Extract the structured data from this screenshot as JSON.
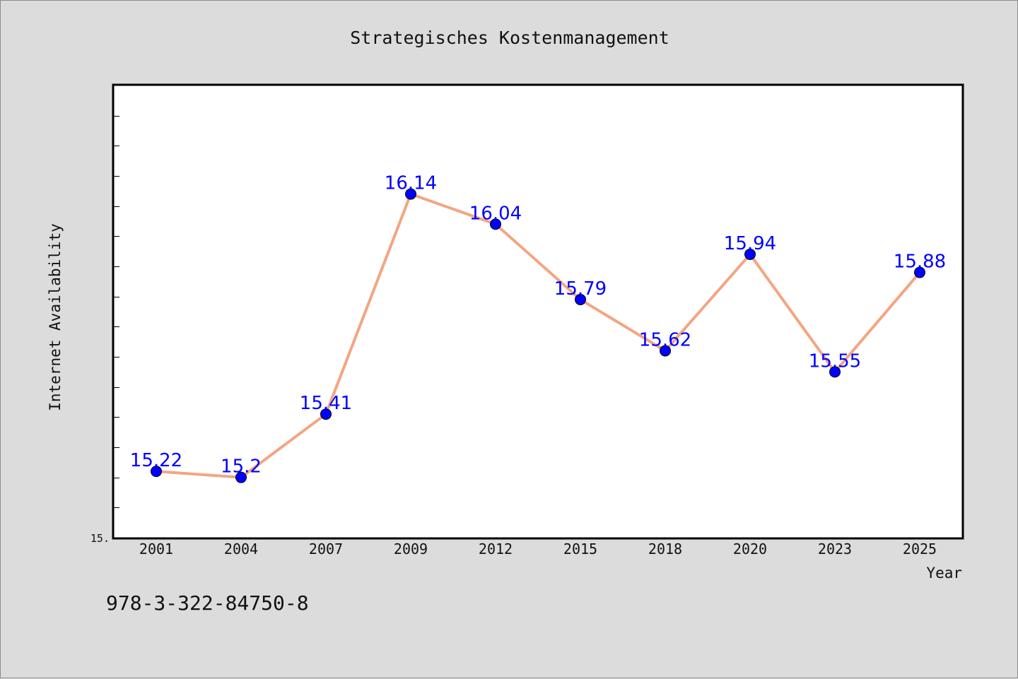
{
  "chart_data": {
    "type": "line",
    "title": "Strategisches Kostenmanagement",
    "xlabel": "Year",
    "ylabel": "Internet Availability",
    "categories": [
      "2001",
      "2004",
      "2007",
      "2009",
      "2012",
      "2015",
      "2018",
      "2020",
      "2023",
      "2025"
    ],
    "series": [
      {
        "values": [
          15.22,
          15.2,
          15.41,
          16.14,
          16.04,
          15.79,
          15.62,
          15.94,
          15.55,
          15.88
        ],
        "labels": [
          "15.22",
          "15.2",
          "15.41",
          "16.14",
          "16.04",
          "15.79",
          "15.62",
          "15.94",
          "15.55",
          "15.88"
        ]
      }
    ],
    "ylim": [
      15.0,
      16.5
    ],
    "y_tick_label": "15.",
    "grid": false,
    "legend": false
  },
  "footer": {
    "text": "978-3-322-84750-8"
  },
  "colors": {
    "line": "#f4a582",
    "marker": "#0000ff",
    "data_label": "#0000ff",
    "plot_background": "#ffffff",
    "page_background": "#dcdcdc"
  }
}
